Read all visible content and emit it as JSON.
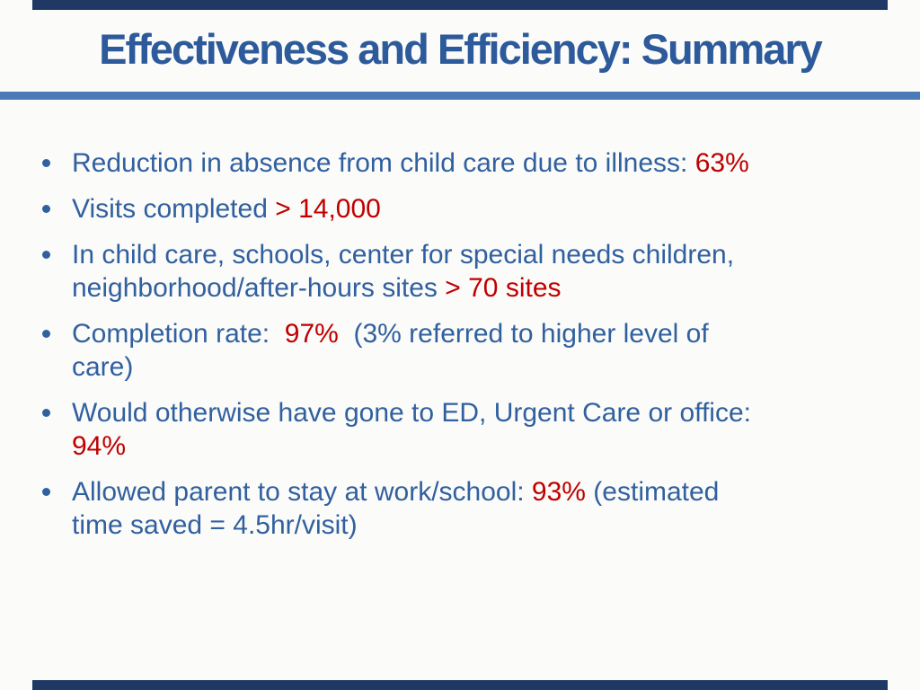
{
  "slide": {
    "title": "Effectiveness and Efficiency: Summary"
  },
  "colors": {
    "background": "#FBFBF9",
    "band_navy": "#1F3864",
    "title_blue": "#2D5A9B",
    "body_blue": "#31609F",
    "accent_red": "#C00000",
    "rule_blue": "#4A7BB7"
  },
  "bullets": [
    {
      "segments": [
        {
          "text": "Reduction in absence from child care due to illness: ",
          "color": "body_blue"
        },
        {
          "text": "63%",
          "color": "accent_red"
        }
      ]
    },
    {
      "segments": [
        {
          "text": "Visits completed ",
          "color": "body_blue"
        },
        {
          "text": "> 14,000",
          "color": "accent_red"
        }
      ]
    },
    {
      "segments": [
        {
          "text": "In child care, schools, center for special needs children,\nneighborhood/after-hours sites ",
          "color": "body_blue"
        },
        {
          "text": "> 70 sites",
          "color": "accent_red"
        }
      ]
    },
    {
      "segments": [
        {
          "text": "Completion rate:  ",
          "color": "body_blue"
        },
        {
          "text": "97%",
          "color": "accent_red"
        },
        {
          "text": "  (3% referred to higher level of\ncare)",
          "color": "body_blue"
        }
      ]
    },
    {
      "segments": [
        {
          "text": "Would otherwise have gone to ED, Urgent Care or office:\n",
          "color": "body_blue"
        },
        {
          "text": "94%",
          "color": "accent_red"
        }
      ]
    },
    {
      "segments": [
        {
          "text": "Allowed parent to stay at work/school: ",
          "color": "body_blue"
        },
        {
          "text": "93%",
          "color": "accent_red"
        },
        {
          "text": " (estimated\ntime saved = 4.5hr/visit)",
          "color": "body_blue"
        }
      ]
    }
  ]
}
